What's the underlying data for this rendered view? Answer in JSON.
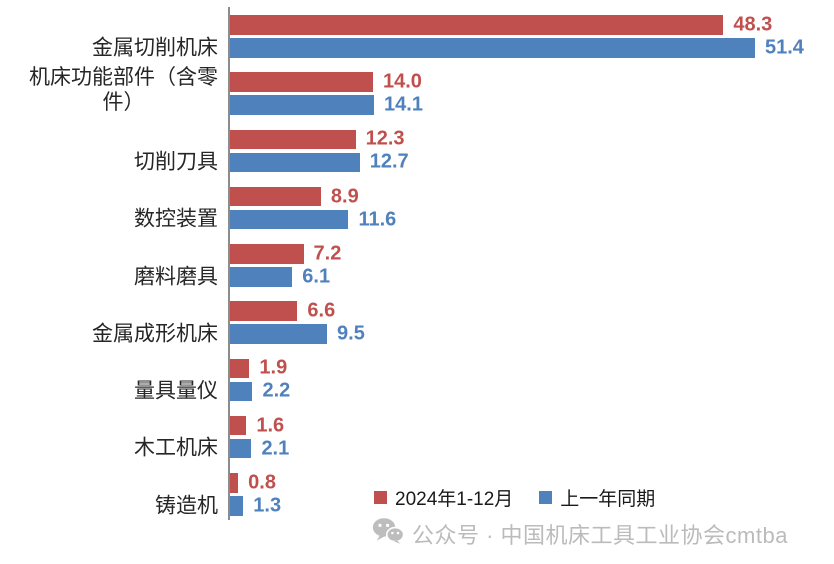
{
  "chart_data": {
    "type": "bar",
    "orientation": "horizontal",
    "title": "",
    "xlabel": "",
    "ylabel": "",
    "xlim": [
      0,
      51.4
    ],
    "grid": false,
    "legend_position": "bottom",
    "categories": [
      "金属切削机床",
      "机床功能部件（含零\n件）",
      "切削刀具",
      "数控装置",
      "磨料磨具",
      "金属成形机床",
      "量具量仪",
      "木工机床",
      "铸造机"
    ],
    "series": [
      {
        "name": "2024年1-12月",
        "color": "#c0504d",
        "values": [
          48.3,
          14.0,
          12.3,
          8.9,
          7.2,
          6.6,
          1.9,
          1.6,
          0.8
        ]
      },
      {
        "name": "上一年同期",
        "color": "#4f81bd",
        "values": [
          51.4,
          14.1,
          12.7,
          11.6,
          6.1,
          9.5,
          2.2,
          2.1,
          1.3
        ]
      }
    ],
    "value_label_decimals": 1
  },
  "watermark": {
    "icon": "wechat-icon",
    "text": "公众号 · 中国机床工具工业协会cmtba",
    "color": "#bbbbbb"
  }
}
